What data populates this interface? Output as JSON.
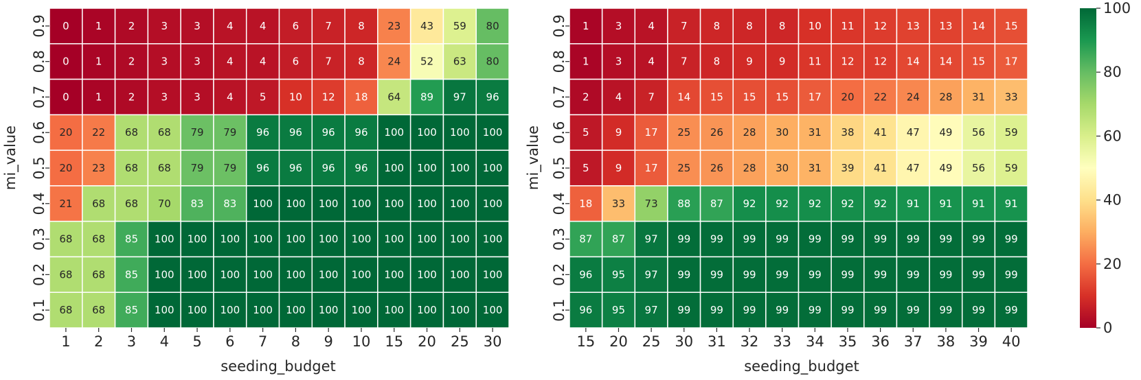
{
  "chart_data": [
    {
      "type": "heatmap",
      "xlabel": "seeding_budget",
      "ylabel": "mi_value",
      "x_categories": [
        "1",
        "2",
        "3",
        "4",
        "5",
        "6",
        "7",
        "8",
        "9",
        "10",
        "15",
        "20",
        "25",
        "30"
      ],
      "y_categories": [
        "0.9",
        "0.8",
        "0.7",
        "0.6",
        "0.5",
        "0.4",
        "0.3",
        "0.2",
        "0.1"
      ],
      "values": [
        [
          0,
          1,
          2,
          3,
          3,
          4,
          4,
          6,
          7,
          8,
          23,
          43,
          59,
          80
        ],
        [
          0,
          1,
          2,
          3,
          3,
          4,
          4,
          6,
          7,
          8,
          24,
          52,
          63,
          80
        ],
        [
          0,
          1,
          2,
          3,
          3,
          4,
          5,
          10,
          12,
          18,
          64,
          89,
          97,
          96
        ],
        [
          20,
          22,
          68,
          68,
          79,
          79,
          96,
          96,
          96,
          96,
          100,
          100,
          100,
          100
        ],
        [
          20,
          23,
          68,
          68,
          79,
          79,
          96,
          96,
          96,
          96,
          100,
          100,
          100,
          100
        ],
        [
          21,
          68,
          68,
          70,
          83,
          83,
          100,
          100,
          100,
          100,
          100,
          100,
          100,
          100
        ],
        [
          68,
          68,
          85,
          100,
          100,
          100,
          100,
          100,
          100,
          100,
          100,
          100,
          100,
          100
        ],
        [
          68,
          68,
          85,
          100,
          100,
          100,
          100,
          100,
          100,
          100,
          100,
          100,
          100,
          100
        ],
        [
          68,
          68,
          85,
          100,
          100,
          100,
          100,
          100,
          100,
          100,
          100,
          100,
          100,
          100
        ]
      ]
    },
    {
      "type": "heatmap",
      "xlabel": "seeding_budget",
      "ylabel": "mi_value",
      "x_categories": [
        "15",
        "20",
        "25",
        "30",
        "31",
        "32",
        "33",
        "34",
        "35",
        "36",
        "37",
        "38",
        "39",
        "40"
      ],
      "y_categories": [
        "0.9",
        "0.8",
        "0.7",
        "0.6",
        "0.5",
        "0.4",
        "0.3",
        "0.2",
        "0.1"
      ],
      "values": [
        [
          1,
          3,
          4,
          7,
          8,
          8,
          8,
          10,
          11,
          12,
          13,
          13,
          14,
          15
        ],
        [
          1,
          3,
          4,
          7,
          8,
          9,
          9,
          11,
          12,
          12,
          14,
          14,
          15,
          17
        ],
        [
          2,
          4,
          7,
          14,
          15,
          15,
          15,
          17,
          20,
          22,
          24,
          28,
          31,
          33
        ],
        [
          5,
          9,
          17,
          25,
          26,
          28,
          30,
          31,
          38,
          41,
          47,
          49,
          56,
          59
        ],
        [
          5,
          9,
          17,
          25,
          26,
          28,
          30,
          31,
          39,
          41,
          47,
          49,
          56,
          59
        ],
        [
          18,
          33,
          73,
          88,
          87,
          92,
          92,
          92,
          92,
          92,
          91,
          91,
          91,
          91
        ],
        [
          87,
          87,
          97,
          99,
          99,
          99,
          99,
          99,
          99,
          99,
          99,
          99,
          99,
          99
        ],
        [
          96,
          95,
          97,
          99,
          99,
          99,
          99,
          99,
          99,
          99,
          99,
          99,
          99,
          99
        ],
        [
          96,
          95,
          97,
          99,
          99,
          99,
          99,
          99,
          99,
          99,
          99,
          99,
          99,
          99
        ]
      ]
    }
  ],
  "colorbar": {
    "colormap": "RdYlGn",
    "vmin": 0,
    "vmax": 100,
    "ticks": [
      "0",
      "20",
      "40",
      "60",
      "80",
      "100"
    ]
  }
}
